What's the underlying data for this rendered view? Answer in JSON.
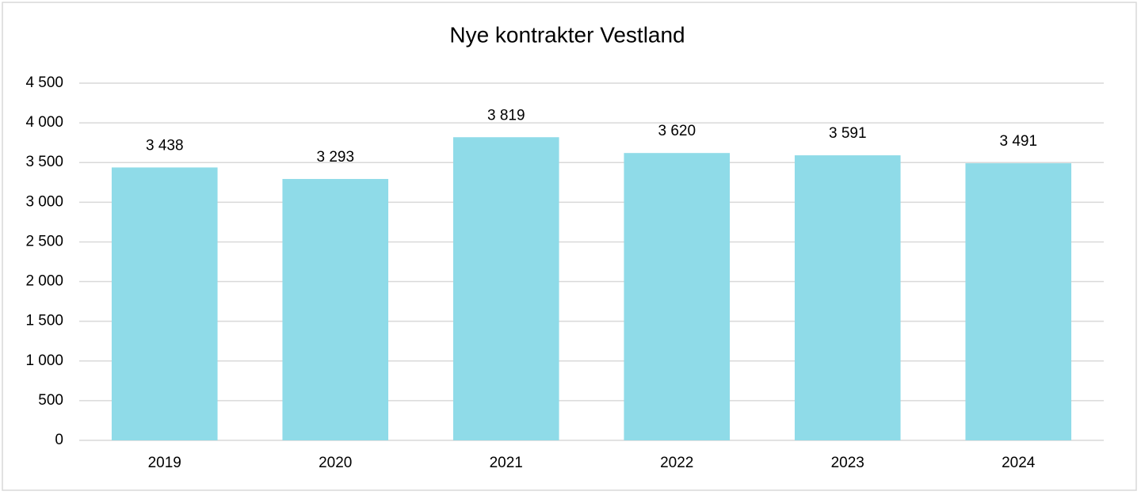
{
  "chart_data": {
    "type": "bar",
    "title": "Nye kontrakter Vestland",
    "categories": [
      "2019",
      "2020",
      "2021",
      "2022",
      "2023",
      "2024"
    ],
    "values": [
      3438,
      3293,
      3819,
      3620,
      3591,
      3491
    ],
    "value_labels": [
      "3 438",
      "3 293",
      "3 819",
      "3 620",
      "3 591",
      "3 491"
    ],
    "color": "#8fdbe8",
    "ylim": [
      0,
      4500
    ],
    "yticks": [
      0,
      500,
      {
        "value": 1000,
        "label": "1 000"
      },
      {
        "value": 1500,
        "label": "1 500"
      },
      {
        "value": 2000,
        "label": "2 000"
      },
      {
        "value": 2500,
        "label": "2 500"
      },
      {
        "value": 3000,
        "label": "3 000"
      },
      {
        "value": 3500,
        "label": "3 500"
      },
      {
        "value": 4000,
        "label": "4 000"
      },
      {
        "value": 4500,
        "label": "4 500"
      }
    ],
    "grid": true
  }
}
